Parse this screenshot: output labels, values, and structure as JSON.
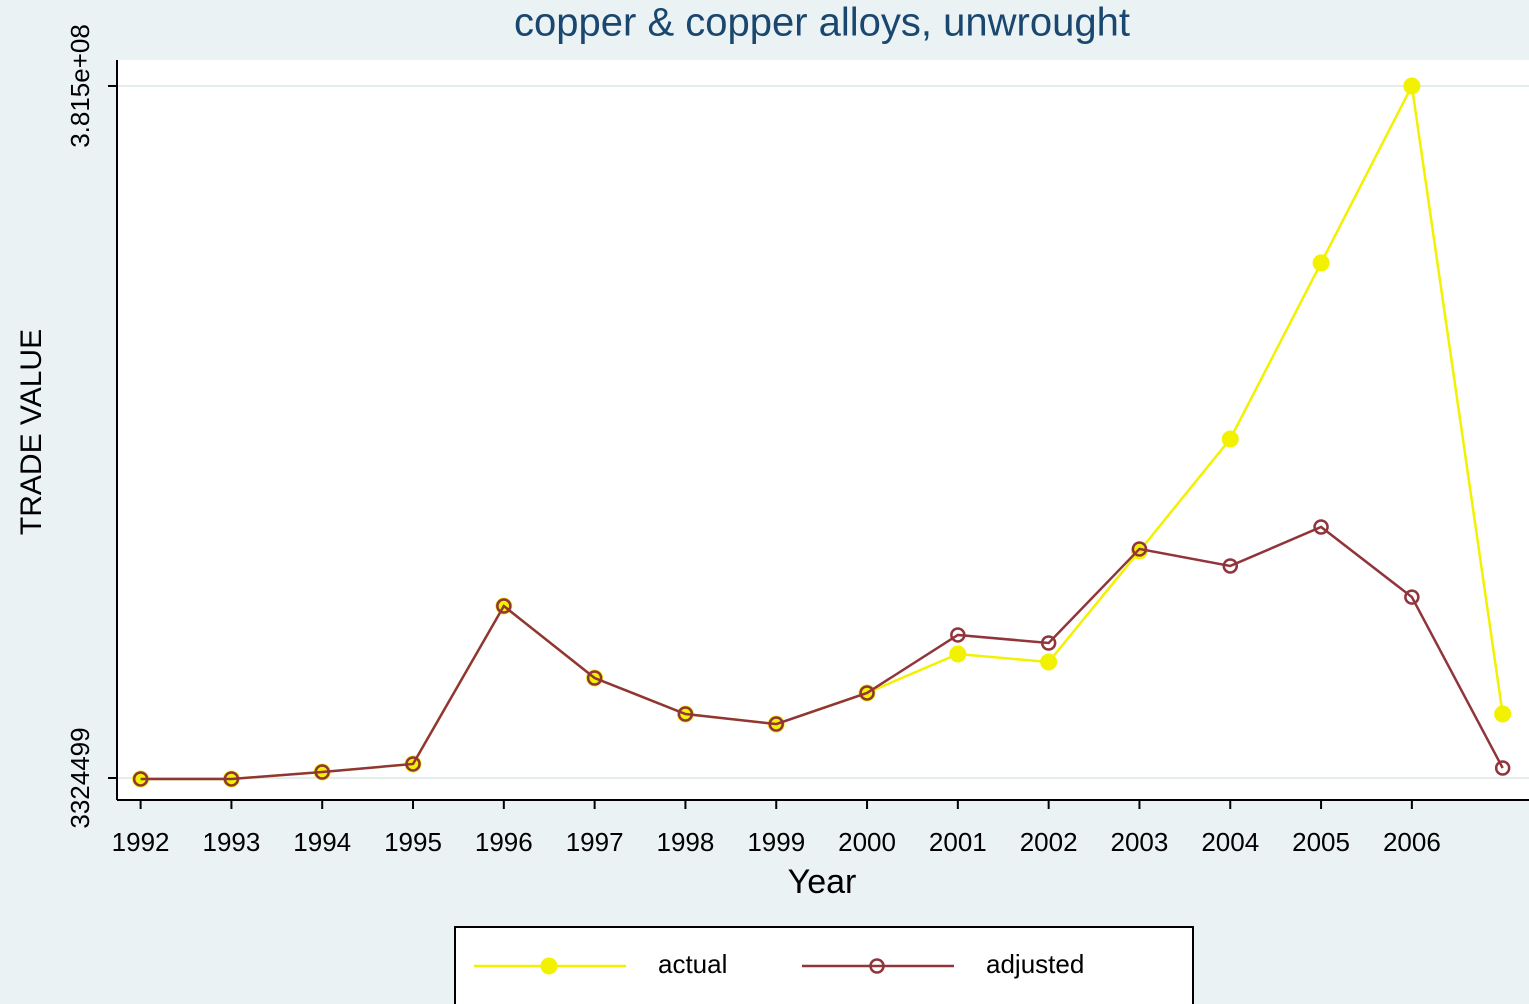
{
  "chart_data": {
    "type": "line",
    "title": "copper & copper alloys, unwrought",
    "x_label": "Year",
    "y_label": "TRADE VALUE",
    "x": [
      1992,
      1993,
      1994,
      1995,
      1996,
      1997,
      1998,
      1999,
      2000,
      2001,
      2002,
      2003,
      2004,
      2005,
      2006,
      2007
    ],
    "series": [
      {
        "name": "actual",
        "color": "#f2f200",
        "marker": "filled",
        "values": [
          2800000,
          2800000,
          6600000,
          11000000,
          97300000,
          57970000,
          38300000,
          32800000,
          49800000,
          71100000,
          66700000,
          127400000,
          188600000,
          284800000,
          381500000,
          38300000
        ]
      },
      {
        "name": "adjusted",
        "color": "#90353b",
        "marker": "hollow",
        "values": [
          2800000,
          2800000,
          6600000,
          11000000,
          97300000,
          57970000,
          38300000,
          32800000,
          49800000,
          81500000,
          77100000,
          128500000,
          119200000,
          140500000,
          102200000,
          8800000
        ]
      }
    ],
    "xlim": [
      1991.74,
      2007.29
    ],
    "xticks": [
      1992,
      1993,
      1994,
      1995,
      1996,
      1997,
      1998,
      1999,
      2000,
      2001,
      2002,
      2003,
      2004,
      2005,
      2006
    ],
    "ylim": [
      -8700000,
      395700000
    ],
    "yticks": [
      3324499,
      {
        "value": 381500000,
        "label": "3.815e+08"
      }
    ],
    "grid": true
  }
}
